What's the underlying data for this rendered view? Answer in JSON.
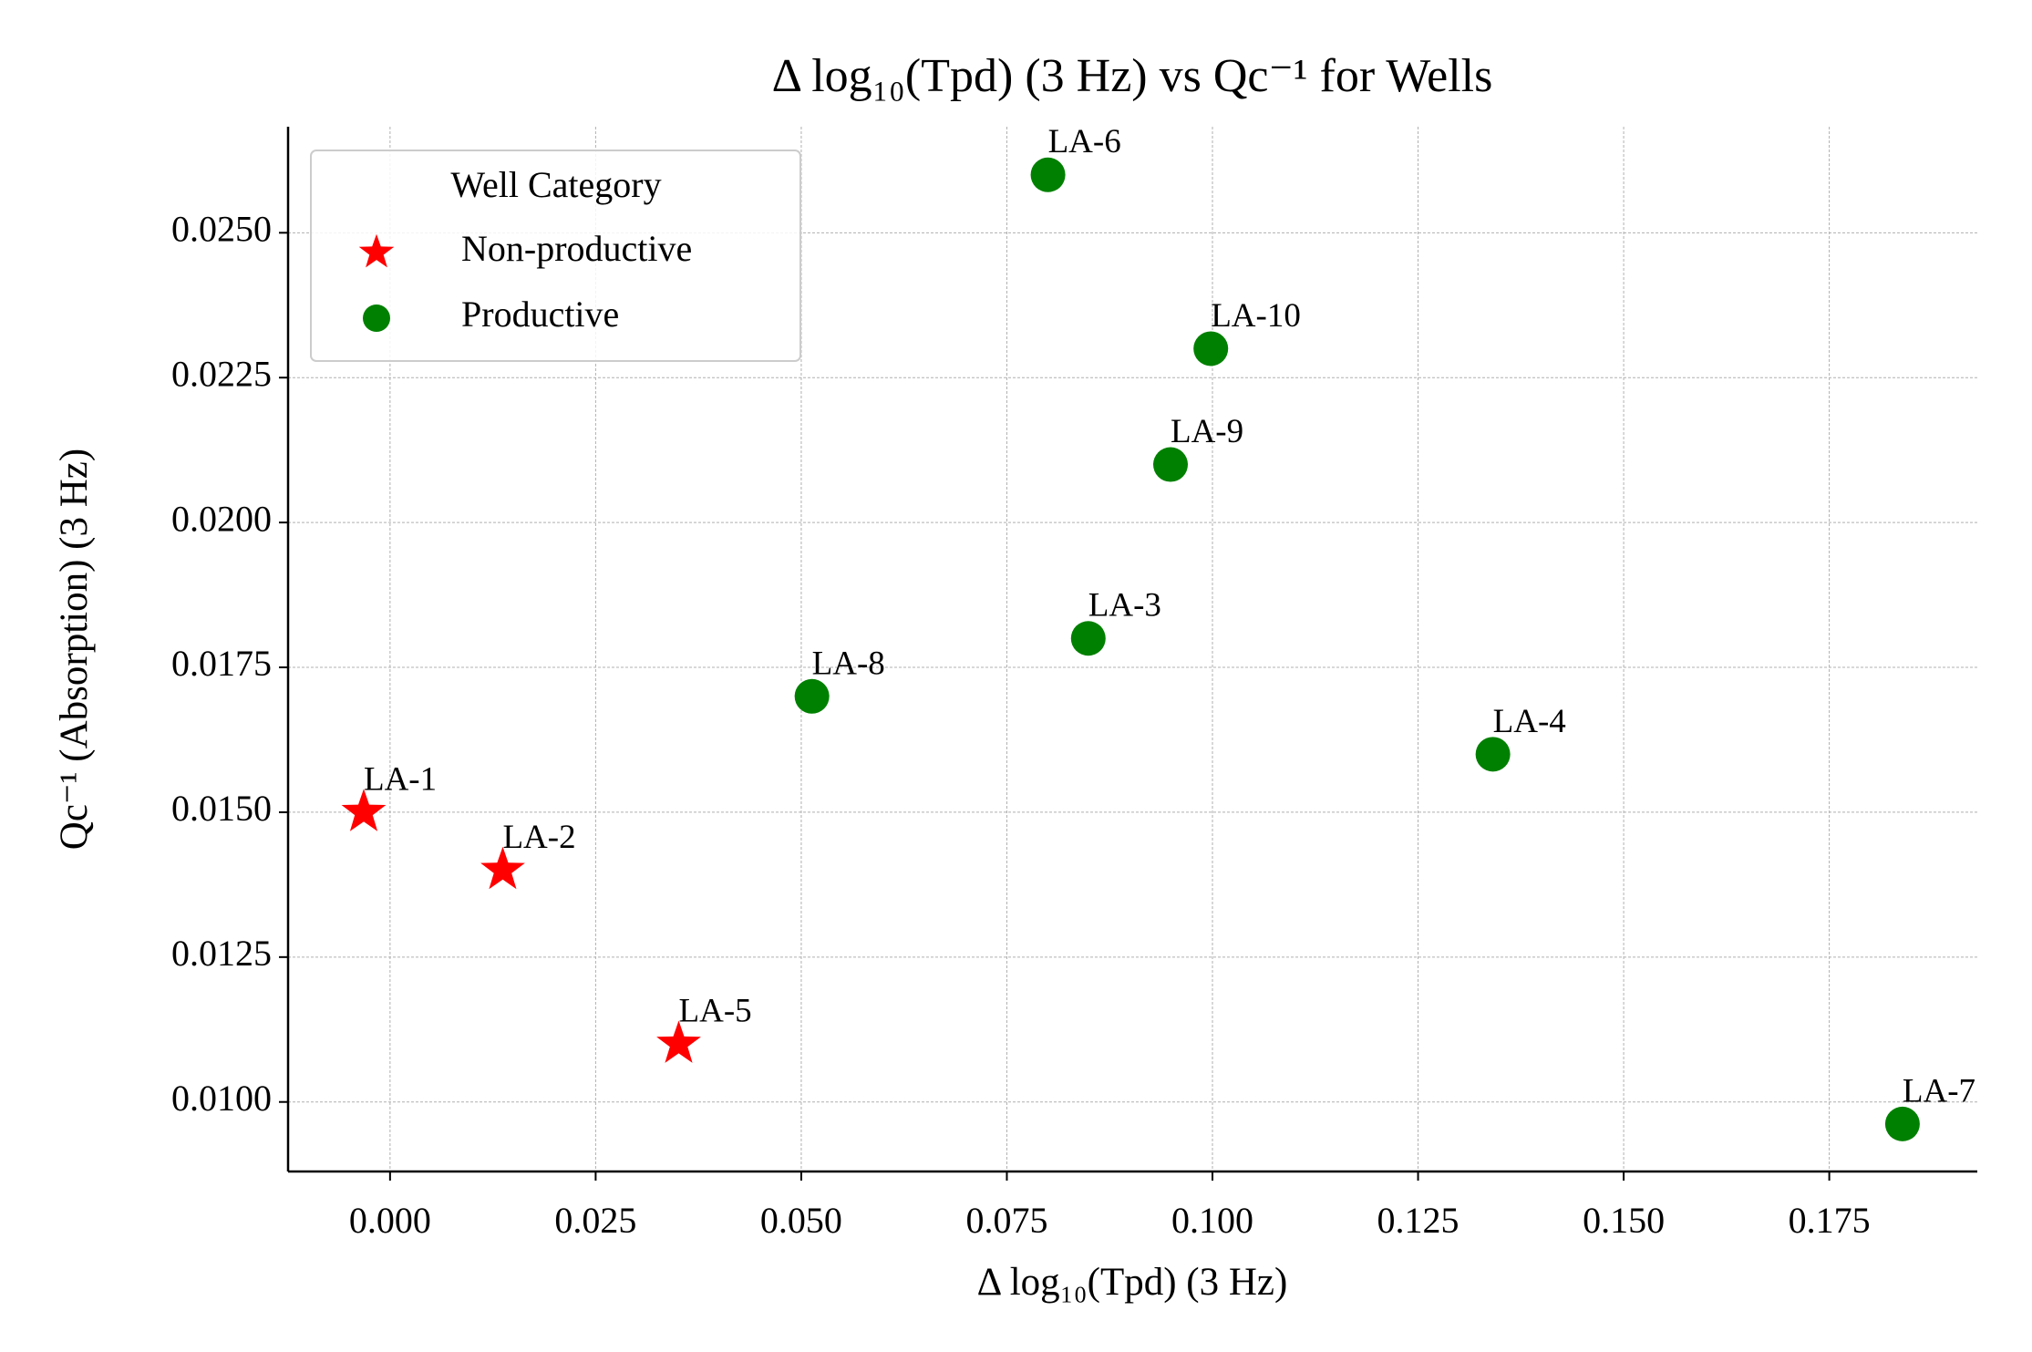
{
  "chart_data": {
    "type": "scatter",
    "title": "Δ log₁₀(Tpd) (3 Hz) vs Qc⁻¹ for Wells",
    "x_label": "Δ log₁₀(Tpd) (3 Hz)",
    "y_label": "Qc⁻¹ (Absorption) (3 Hz)",
    "legend_title": "Well Category",
    "legend_position": "upper left",
    "grid": true,
    "xlim": [
      -0.0124,
      0.193
    ],
    "ylim": [
      0.0088,
      0.02683
    ],
    "xticks": [
      {
        "value": 0,
        "label": "0.000"
      },
      {
        "value": 0.025,
        "label": "0.025"
      },
      {
        "value": 0.05,
        "label": "0.050"
      },
      {
        "value": 0.075,
        "label": "0.075"
      },
      {
        "value": 0.1,
        "label": "0.100"
      },
      {
        "value": 0.125,
        "label": "0.125"
      },
      {
        "value": 0.15,
        "label": "0.150"
      },
      {
        "value": 0.175,
        "label": "0.175"
      }
    ],
    "yticks": [
      {
        "value": 0.01,
        "label": "0.0100"
      },
      {
        "value": 0.0125,
        "label": "0.0125"
      },
      {
        "value": 0.015,
        "label": "0.0150"
      },
      {
        "value": 0.0175,
        "label": "0.0175"
      },
      {
        "value": 0.02,
        "label": "0.0200"
      },
      {
        "value": 0.0225,
        "label": "0.0225"
      },
      {
        "value": 0.025,
        "label": "0.0250"
      }
    ],
    "series": [
      {
        "name": "Non-productive",
        "color": "#ff0000",
        "marker": "star",
        "labels": [
          "LA-1",
          "LA-2",
          "LA-5"
        ],
        "x": [
          -0.0032,
          0.0137,
          0.0351
        ],
        "values": [
          0.015,
          0.014,
          0.011
        ]
      },
      {
        "name": "Productive",
        "color": "#008000",
        "marker": "circle",
        "labels": [
          "LA-8",
          "LA-3",
          "LA-6",
          "LA-10",
          "LA-9",
          "LA-4",
          "LA-7"
        ],
        "x": [
          0.0513,
          0.0849,
          0.08,
          0.0998,
          0.0949,
          0.1341,
          0.1839
        ],
        "values": [
          0.017,
          0.018,
          0.026,
          0.023,
          0.021,
          0.016,
          0.00962
        ]
      }
    ]
  }
}
